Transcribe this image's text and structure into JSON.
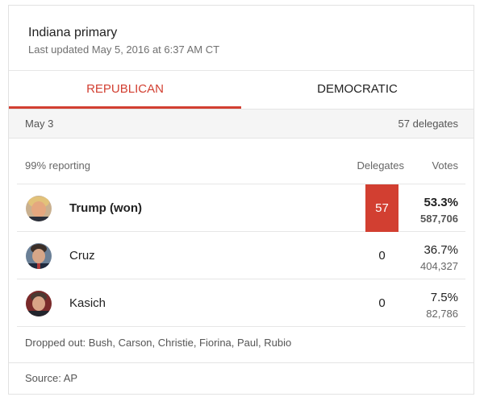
{
  "header": {
    "title": "Indiana primary",
    "updated": "Last updated May 5, 2016 at 6:37 AM CT"
  },
  "tabs": [
    {
      "label": "REPUBLICAN",
      "active": true
    },
    {
      "label": "DEMOCRATIC",
      "active": false
    }
  ],
  "date_bar": {
    "date": "May 3",
    "delegates": "57 delegates"
  },
  "columns": {
    "reporting": "99% reporting",
    "delegates": "Delegates",
    "votes": "Votes"
  },
  "candidates": [
    {
      "name": "Trump (won)",
      "delegates": "57",
      "percent": "53.3%",
      "votes": "587,706",
      "winner": true,
      "avatar_icon": "trump-avatar"
    },
    {
      "name": "Cruz",
      "delegates": "0",
      "percent": "36.7%",
      "votes": "404,327",
      "winner": false,
      "avatar_icon": "cruz-avatar"
    },
    {
      "name": "Kasich",
      "delegates": "0",
      "percent": "7.5%",
      "votes": "82,786",
      "winner": false,
      "avatar_icon": "kasich-avatar"
    }
  ],
  "dropped_out": "Dropped out: Bush, Carson, Christie, Fiorina, Paul, Rubio",
  "source": "Source: AP",
  "colors": {
    "accent": "#d23f31",
    "muted_text": "#707070",
    "bar_bg": "#f5f5f5"
  }
}
